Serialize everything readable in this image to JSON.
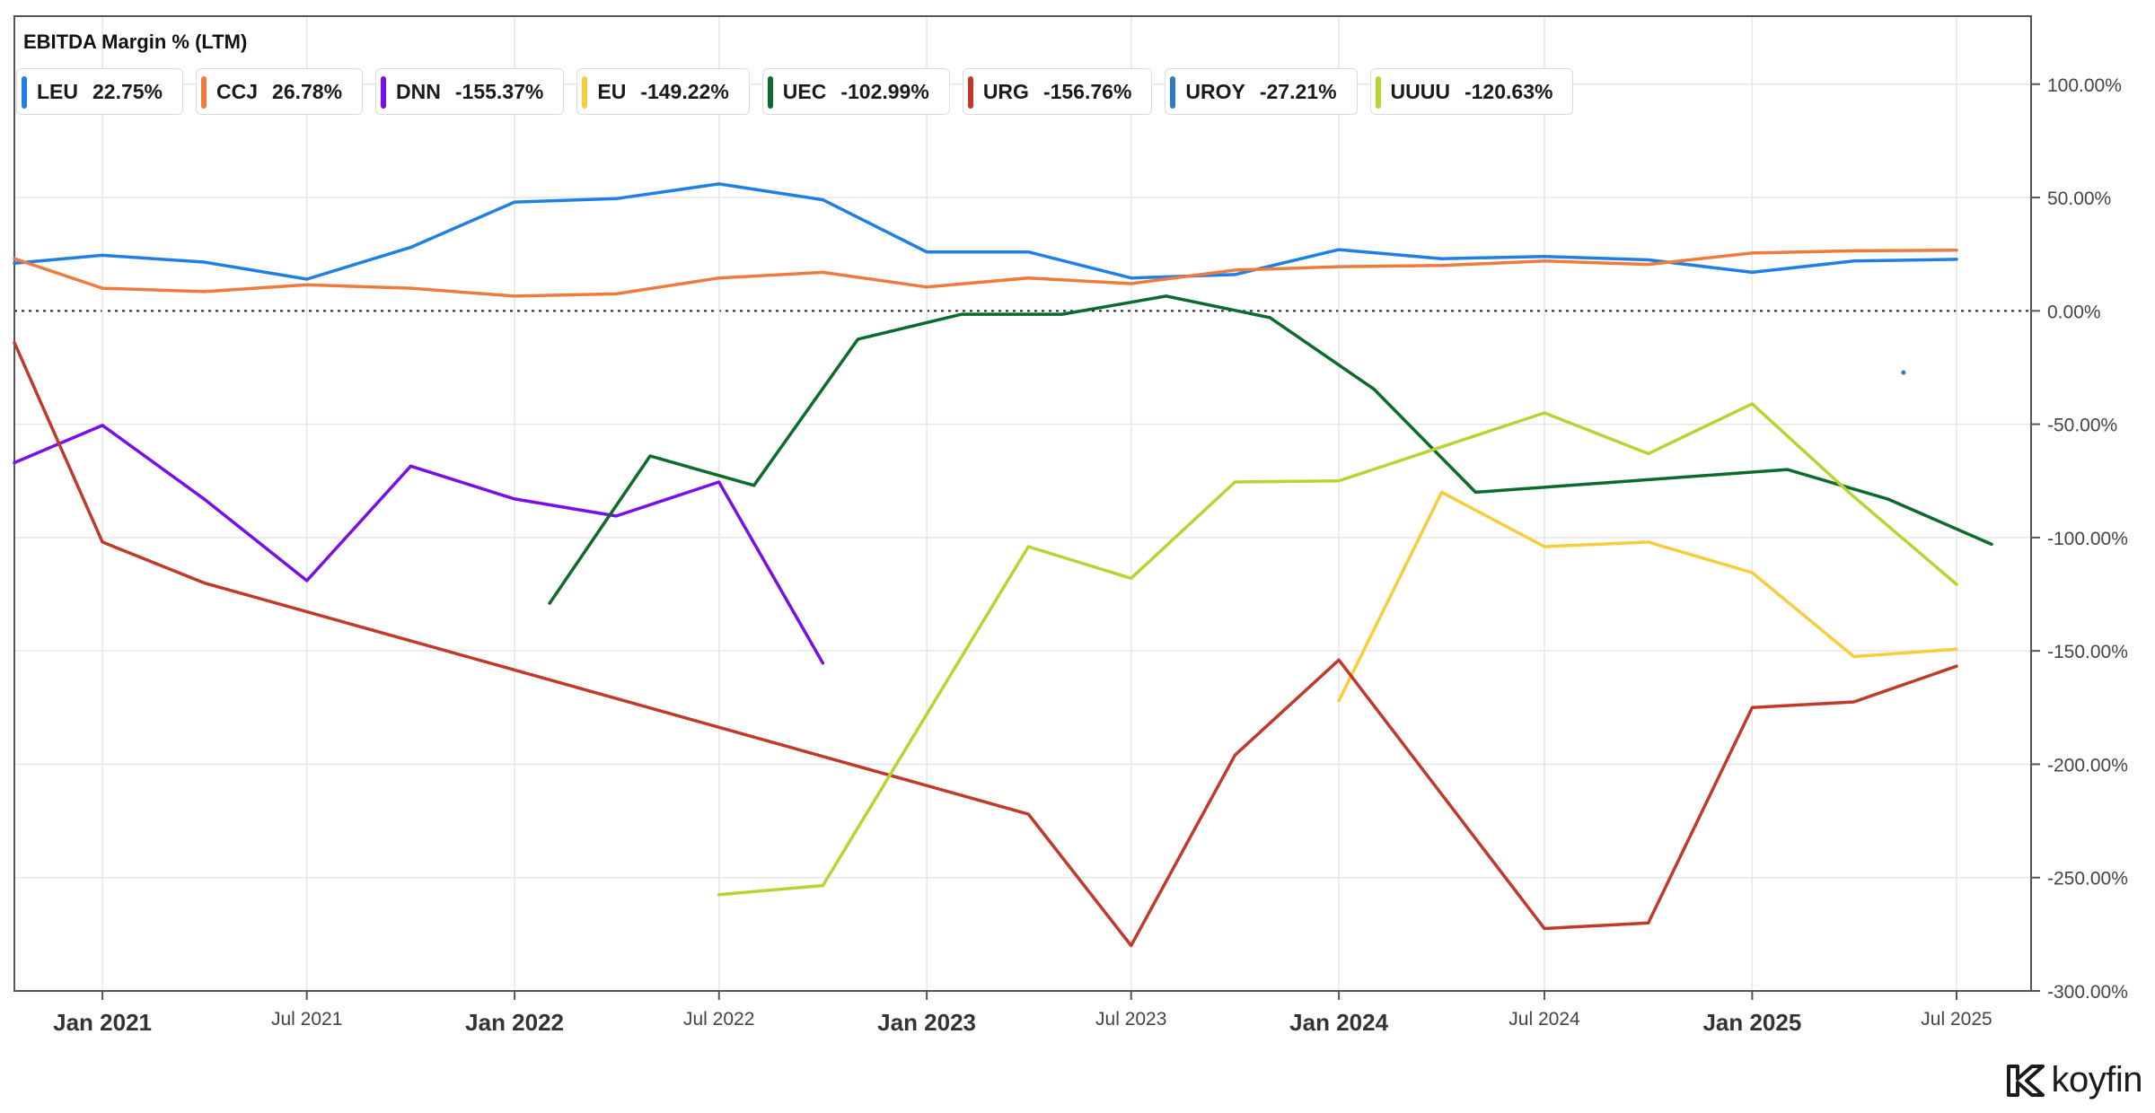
{
  "chart_data": {
    "type": "line",
    "title": "EBITDA Margin % (LTM)",
    "ylim": [
      -300,
      130
    ],
    "yticks": [
      100,
      50,
      0,
      -50,
      -100,
      -150,
      -200,
      -250,
      -300
    ],
    "ytick_labels": [
      "100.00%",
      "50.00%",
      "0.00%",
      "-50.00%",
      "-100.00%",
      "-150.00%",
      "-200.00%",
      "-250.00%",
      "-300.00%"
    ],
    "xlim": [
      "2020-10-15",
      "2025-09-05"
    ],
    "xticks": [
      {
        "date": "2021-01-01",
        "label": "Jan 2021",
        "major": true
      },
      {
        "date": "2021-07-01",
        "label": "Jul 2021",
        "major": false
      },
      {
        "date": "2022-01-01",
        "label": "Jan 2022",
        "major": true
      },
      {
        "date": "2022-07-01",
        "label": "Jul 2022",
        "major": false
      },
      {
        "date": "2023-01-01",
        "label": "Jan 2023",
        "major": true
      },
      {
        "date": "2023-07-01",
        "label": "Jul 2023",
        "major": false
      },
      {
        "date": "2024-01-01",
        "label": "Jan 2024",
        "major": true
      },
      {
        "date": "2024-07-01",
        "label": "Jul 2024",
        "major": false
      },
      {
        "date": "2025-01-01",
        "label": "Jan 2025",
        "major": true
      },
      {
        "date": "2025-07-01",
        "label": "Jul 2025",
        "major": false
      }
    ],
    "series": [
      {
        "name": "LEU",
        "value_label": "22.75%",
        "color": "#1f7fe5",
        "points": [
          [
            "2020-10-15",
            21
          ],
          [
            "2021-01-01",
            24.5
          ],
          [
            "2021-04-01",
            21.5
          ],
          [
            "2021-07-01",
            14
          ],
          [
            "2021-10-01",
            28
          ],
          [
            "2022-01-01",
            48
          ],
          [
            "2022-04-01",
            49.5
          ],
          [
            "2022-07-01",
            56
          ],
          [
            "2022-10-01",
            49
          ],
          [
            "2023-01-01",
            26
          ],
          [
            "2023-04-01",
            26
          ],
          [
            "2023-07-01",
            14.5
          ],
          [
            "2023-10-01",
            16
          ],
          [
            "2024-01-01",
            27
          ],
          [
            "2024-04-01",
            23
          ],
          [
            "2024-07-01",
            24
          ],
          [
            "2024-10-01",
            22.5
          ],
          [
            "2025-01-01",
            17
          ],
          [
            "2025-04-01",
            22
          ],
          [
            "2025-07-01",
            22.75
          ]
        ]
      },
      {
        "name": "CCJ",
        "value_label": "26.78%",
        "color": "#ee7b3d",
        "points": [
          [
            "2020-10-15",
            23
          ],
          [
            "2021-01-01",
            10
          ],
          [
            "2021-04-01",
            8.5
          ],
          [
            "2021-07-01",
            11.5
          ],
          [
            "2021-10-01",
            10
          ],
          [
            "2022-01-01",
            6.5
          ],
          [
            "2022-04-01",
            7.5
          ],
          [
            "2022-07-01",
            14.5
          ],
          [
            "2022-10-01",
            17
          ],
          [
            "2023-01-01",
            10.5
          ],
          [
            "2023-04-01",
            14.5
          ],
          [
            "2023-07-01",
            12
          ],
          [
            "2023-10-01",
            18
          ],
          [
            "2024-01-01",
            19.5
          ],
          [
            "2024-04-01",
            20
          ],
          [
            "2024-07-01",
            22
          ],
          [
            "2024-10-01",
            20.5
          ],
          [
            "2025-01-01",
            25.5
          ],
          [
            "2025-04-01",
            26.5
          ],
          [
            "2025-07-01",
            26.78
          ]
        ]
      },
      {
        "name": "DNN",
        "value_label": "-155.37%",
        "color": "#7a0ee8",
        "points": [
          [
            "2020-10-15",
            -67
          ],
          [
            "2021-01-01",
            -50.5
          ],
          [
            "2021-04-01",
            -83
          ],
          [
            "2021-07-01",
            -119
          ],
          [
            "2021-10-01",
            -68.5
          ],
          [
            "2022-01-01",
            -83
          ],
          [
            "2022-04-01",
            -90.5
          ],
          [
            "2022-07-01",
            -75.5
          ],
          [
            "2022-10-01",
            -155.37
          ]
        ]
      },
      {
        "name": "EU",
        "value_label": "-149.22%",
        "color": "#f7cd3c",
        "points": [
          [
            "2024-01-01",
            -172
          ],
          [
            "2024-04-01",
            -80
          ],
          [
            "2024-07-01",
            -104
          ],
          [
            "2024-10-01",
            -102
          ],
          [
            "2025-01-01",
            -115.5
          ],
          [
            "2025-04-01",
            -152.5
          ],
          [
            "2025-07-01",
            -149.22
          ]
        ]
      },
      {
        "name": "UEC",
        "value_label": "-102.99%",
        "color": "#0b6b2c",
        "points": [
          [
            "2022-02-01",
            -129
          ],
          [
            "2022-05-01",
            -64
          ],
          [
            "2022-08-01",
            -77
          ],
          [
            "2022-11-01",
            -12.5
          ],
          [
            "2023-02-01",
            -1.5
          ],
          [
            "2023-05-01",
            -1.5
          ],
          [
            "2023-08-01",
            6.5
          ],
          [
            "2023-11-01",
            -3
          ],
          [
            "2024-02-01",
            -34.5
          ],
          [
            "2024-05-01",
            -80
          ],
          [
            "2025-02-01",
            -70
          ],
          [
            "2025-05-01",
            -83
          ],
          [
            "2025-08-01",
            -102.99
          ]
        ]
      },
      {
        "name": "URG",
        "value_label": "-156.76%",
        "color": "#c0392b",
        "points": [
          [
            "2020-10-15",
            -14
          ],
          [
            "2021-01-01",
            -102
          ],
          [
            "2021-04-01",
            -120
          ],
          [
            "2023-04-01",
            -222
          ],
          [
            "2023-07-01",
            -280
          ],
          [
            "2023-10-01",
            -196
          ],
          [
            "2024-01-01",
            -154
          ],
          [
            "2024-07-01",
            -272.5
          ],
          [
            "2024-10-01",
            -270
          ],
          [
            "2025-01-01",
            -175
          ],
          [
            "2025-04-01",
            -172.5
          ],
          [
            "2025-07-01",
            -156.76
          ]
        ]
      },
      {
        "name": "UROY",
        "value_label": "-27.21%",
        "color": "#2c7bc7",
        "points": [
          [
            "2025-05-15",
            -27.21
          ]
        ]
      },
      {
        "name": "UUUU",
        "value_label": "-120.63%",
        "color": "#b8d432",
        "points": [
          [
            "2022-07-01",
            -257.5
          ],
          [
            "2022-10-01",
            -253.5
          ],
          [
            "2023-04-01",
            -104
          ],
          [
            "2023-07-01",
            -118
          ],
          [
            "2023-10-01",
            -75.5
          ],
          [
            "2024-01-01",
            -75
          ],
          [
            "2024-07-01",
            -45
          ],
          [
            "2024-10-01",
            -63
          ],
          [
            "2025-01-01",
            -41
          ],
          [
            "2025-04-01",
            -82
          ],
          [
            "2025-07-01",
            -120.63
          ]
        ]
      }
    ]
  },
  "brand": "koyfin"
}
